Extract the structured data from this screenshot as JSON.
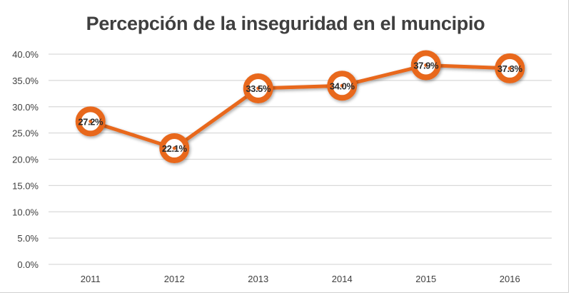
{
  "chart_data": {
    "type": "line",
    "title": "Percepción de la inseguridad en el  muncipio",
    "xlabel": "",
    "ylabel": "",
    "categories": [
      "2011",
      "2012",
      "2013",
      "2014",
      "2015",
      "2016"
    ],
    "series": [
      {
        "name": "Percepción de la inseguridad",
        "values": [
          27.2,
          22.1,
          33.5,
          34.0,
          37.9,
          37.3
        ],
        "labels": [
          "27.2%",
          "22.1%",
          "33.5%",
          "34.0%",
          "37.9%",
          "37.3%"
        ],
        "color": "#e8671f"
      }
    ],
    "ylim": [
      0,
      40
    ],
    "yticks": [
      0,
      5,
      10,
      15,
      20,
      25,
      30,
      35,
      40
    ],
    "ytick_labels": [
      "0.0%",
      "5.0%",
      "10.0%",
      "15.0%",
      "20.0%",
      "25.0%",
      "30.0%",
      "35.0%",
      "40.0%"
    ],
    "grid": true,
    "legend": "none"
  }
}
